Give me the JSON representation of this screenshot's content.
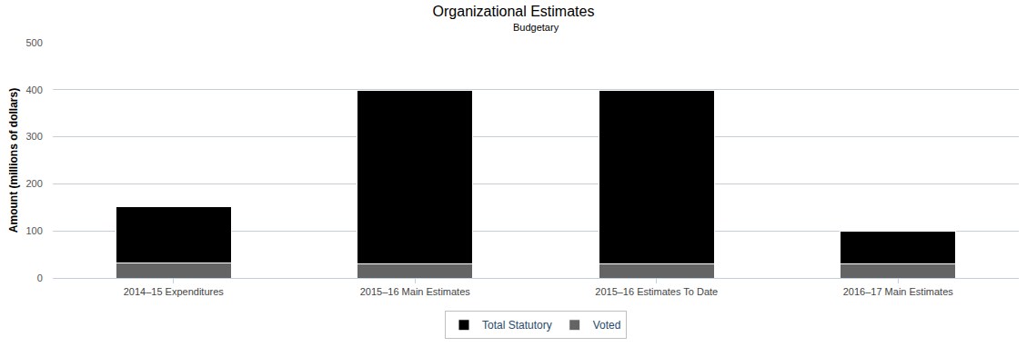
{
  "chart_data": {
    "type": "bar",
    "title": "Organizational Estimates",
    "subtitle": "Budgetary",
    "y_label": "Amount (millions of dollars)",
    "categories": [
      "2014–15 Expenditures",
      "2015–16 Main Estimates",
      "2015–16 Estimates To Date",
      "2016–17 Main Estimates"
    ],
    "series": [
      {
        "name": "Voted",
        "color": "#646464",
        "values": [
          31,
          30,
          30,
          30
        ]
      },
      {
        "name": "Total Statutory",
        "color": "#000000",
        "values": [
          121,
          368,
          368,
          70
        ]
      }
    ],
    "stacked": true,
    "ylim": [
      0,
      500
    ],
    "yticks": [
      0,
      100,
      200,
      300,
      400,
      500
    ],
    "grid": true,
    "legend": "bottom"
  }
}
